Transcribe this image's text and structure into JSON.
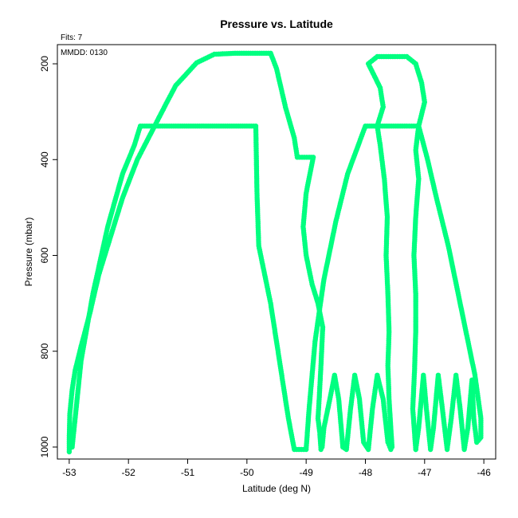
{
  "chart_data": {
    "type": "scatter",
    "title": "Pressure vs. Latitude",
    "xlabel": "Latitude (deg N)",
    "ylabel": "Pressure (mbar)",
    "fits_label": "Fits: 7",
    "mmdd_label": "MMDD: 0130",
    "xlim": [
      -53.2,
      -45.8
    ],
    "ylim": [
      1025,
      160
    ],
    "y_reversed": true,
    "x_ticks": [
      -53,
      -52,
      -51,
      -50,
      -49,
      -48,
      -47,
      -46
    ],
    "y_ticks": [
      200,
      400,
      600,
      800,
      1000
    ],
    "grid": false,
    "marker_color": "#00ff80",
    "series": [
      {
        "points": [
          [
            -53,
            1010
          ],
          [
            -53,
            980
          ],
          [
            -52.99,
            930
          ],
          [
            -52.95,
            880
          ],
          [
            -52.9,
            840
          ],
          [
            -52.8,
            790
          ],
          [
            -52.65,
            720
          ],
          [
            -52.5,
            640
          ],
          [
            -52.3,
            560
          ],
          [
            -52.1,
            480
          ],
          [
            -51.85,
            400
          ],
          [
            -51.6,
            340
          ],
          [
            -51.35,
            280
          ],
          [
            -51.2,
            245
          ],
          [
            -51.05,
            225
          ],
          [
            -50.85,
            198
          ],
          [
            -50.55,
            180
          ],
          [
            -50.2,
            178
          ],
          [
            -49.9,
            178
          ],
          [
            -49.6,
            178
          ],
          [
            -49.5,
            210
          ],
          [
            -49.35,
            290
          ],
          [
            -49.2,
            355
          ],
          [
            -49.15,
            395
          ],
          [
            -48.95,
            395
          ],
          [
            -48.88,
            395
          ],
          [
            -49.0,
            470
          ],
          [
            -49.05,
            540
          ],
          [
            -49.0,
            600
          ],
          [
            -48.9,
            660
          ],
          [
            -48.8,
            700
          ],
          [
            -48.72,
            750
          ],
          [
            -48.75,
            830
          ],
          [
            -48.78,
            900
          ],
          [
            -48.8,
            940
          ],
          [
            -48.77,
            970
          ],
          [
            -48.75,
            1005
          ],
          [
            -48.73,
            1000
          ],
          [
            -48.7,
            960
          ],
          [
            -48.6,
            900
          ],
          [
            -48.52,
            850
          ],
          [
            -48.45,
            900
          ],
          [
            -48.38,
            1000
          ],
          [
            -48.32,
            1005
          ],
          [
            -48.25,
            920
          ],
          [
            -48.18,
            850
          ],
          [
            -48.1,
            900
          ],
          [
            -48.03,
            990
          ],
          [
            -47.95,
            1005
          ],
          [
            -47.88,
            920
          ],
          [
            -47.8,
            850
          ],
          [
            -47.7,
            900
          ],
          [
            -47.62,
            990
          ],
          [
            -47.57,
            1005
          ]
        ]
      },
      {
        "points": [
          [
            -52.95,
            1000
          ],
          [
            -52.8,
            820
          ],
          [
            -52.6,
            680
          ],
          [
            -52.35,
            540
          ],
          [
            -52.1,
            430
          ],
          [
            -51.9,
            370
          ],
          [
            -51.8,
            330
          ],
          [
            -51.5,
            330
          ],
          [
            -51.2,
            330
          ],
          [
            -50.8,
            330
          ],
          [
            -50.4,
            330
          ],
          [
            -50.0,
            330
          ],
          [
            -49.85,
            330
          ],
          [
            -49.83,
            470
          ],
          [
            -49.8,
            580
          ],
          [
            -49.7,
            640
          ],
          [
            -49.6,
            700
          ],
          [
            -49.5,
            780
          ],
          [
            -49.4,
            860
          ],
          [
            -49.3,
            940
          ],
          [
            -49.2,
            1005
          ],
          [
            -49.0,
            1005
          ],
          [
            -48.95,
            920
          ],
          [
            -48.85,
            780
          ],
          [
            -48.7,
            650
          ],
          [
            -48.5,
            530
          ],
          [
            -48.3,
            430
          ],
          [
            -48.0,
            330
          ],
          [
            -47.6,
            330
          ],
          [
            -47.3,
            330
          ],
          [
            -47.1,
            330
          ],
          [
            -46.95,
            400
          ],
          [
            -46.8,
            480
          ],
          [
            -46.6,
            580
          ],
          [
            -46.45,
            670
          ],
          [
            -46.3,
            760
          ],
          [
            -46.15,
            850
          ],
          [
            -46.05,
            940
          ],
          [
            -46.05,
            980
          ],
          [
            -46.12,
            990
          ],
          [
            -46.17,
            940
          ],
          [
            -46.2,
            860
          ],
          [
            -46.27,
            960
          ],
          [
            -46.33,
            1005
          ],
          [
            -46.4,
            920
          ],
          [
            -46.47,
            850
          ],
          [
            -46.55,
            940
          ],
          [
            -46.62,
            1005
          ],
          [
            -46.7,
            920
          ],
          [
            -46.77,
            850
          ],
          [
            -46.85,
            960
          ],
          [
            -46.9,
            1005
          ],
          [
            -46.97,
            920
          ],
          [
            -47.02,
            850
          ],
          [
            -47.1,
            960
          ],
          [
            -47.15,
            1005
          ]
        ]
      },
      {
        "points": [
          [
            -47.55,
            1000
          ],
          [
            -47.6,
            900
          ],
          [
            -47.62,
            830
          ],
          [
            -47.6,
            760
          ],
          [
            -47.62,
            680
          ],
          [
            -47.65,
            600
          ],
          [
            -47.63,
            520
          ],
          [
            -47.68,
            440
          ],
          [
            -47.75,
            370
          ],
          [
            -47.8,
            330
          ],
          [
            -47.7,
            290
          ],
          [
            -47.75,
            250
          ],
          [
            -47.95,
            200
          ],
          [
            -47.8,
            185
          ],
          [
            -47.5,
            185
          ],
          [
            -47.3,
            185
          ],
          [
            -47.15,
            200
          ],
          [
            -47.05,
            240
          ],
          [
            -47.0,
            280
          ],
          [
            -47.1,
            330
          ],
          [
            -47.15,
            380
          ],
          [
            -47.1,
            440
          ],
          [
            -47.15,
            520
          ],
          [
            -47.18,
            600
          ],
          [
            -47.15,
            680
          ],
          [
            -47.15,
            760
          ],
          [
            -47.17,
            840
          ],
          [
            -47.2,
            920
          ],
          [
            -47.15,
            1005
          ]
        ]
      }
    ]
  }
}
